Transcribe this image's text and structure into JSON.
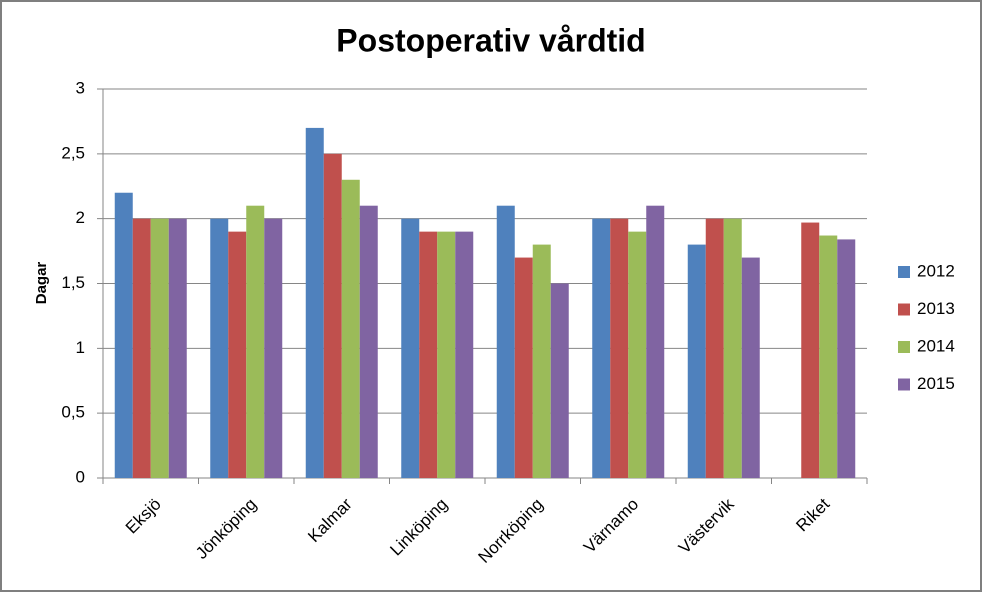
{
  "chart_data": {
    "type": "bar",
    "title": "Postoperativ vårdtid",
    "y_label": "Dagar",
    "categories": [
      "Eksjö",
      "Jönköping",
      "Kalmar",
      "Linköping",
      "Norrköping",
      "Värnamo",
      "Västervik",
      "Riket"
    ],
    "series": [
      {
        "name": "2012",
        "color": "#4f81bd",
        "values": [
          2.2,
          2.0,
          2.7,
          2.0,
          2.1,
          2.0,
          1.8,
          null
        ]
      },
      {
        "name": "2013",
        "color": "#c0504d",
        "values": [
          2.0,
          1.9,
          2.5,
          1.9,
          1.7,
          2.0,
          2.0,
          1.97
        ]
      },
      {
        "name": "2014",
        "color": "#9bbb59",
        "values": [
          2.0,
          2.1,
          2.3,
          1.9,
          1.8,
          1.9,
          2.0,
          1.87
        ]
      },
      {
        "name": "2015",
        "color": "#8064a2",
        "values": [
          2.0,
          2.0,
          2.1,
          1.9,
          1.5,
          2.1,
          1.7,
          1.84
        ]
      }
    ],
    "ylim": [
      0,
      3
    ],
    "yticks": [
      0,
      {
        "value": 0.5,
        "label": "0,5"
      },
      1,
      {
        "value": 1.5,
        "label": "1,5"
      },
      2,
      {
        "value": 2.5,
        "label": "2,5"
      },
      3
    ],
    "grid": true,
    "legend": "right"
  }
}
